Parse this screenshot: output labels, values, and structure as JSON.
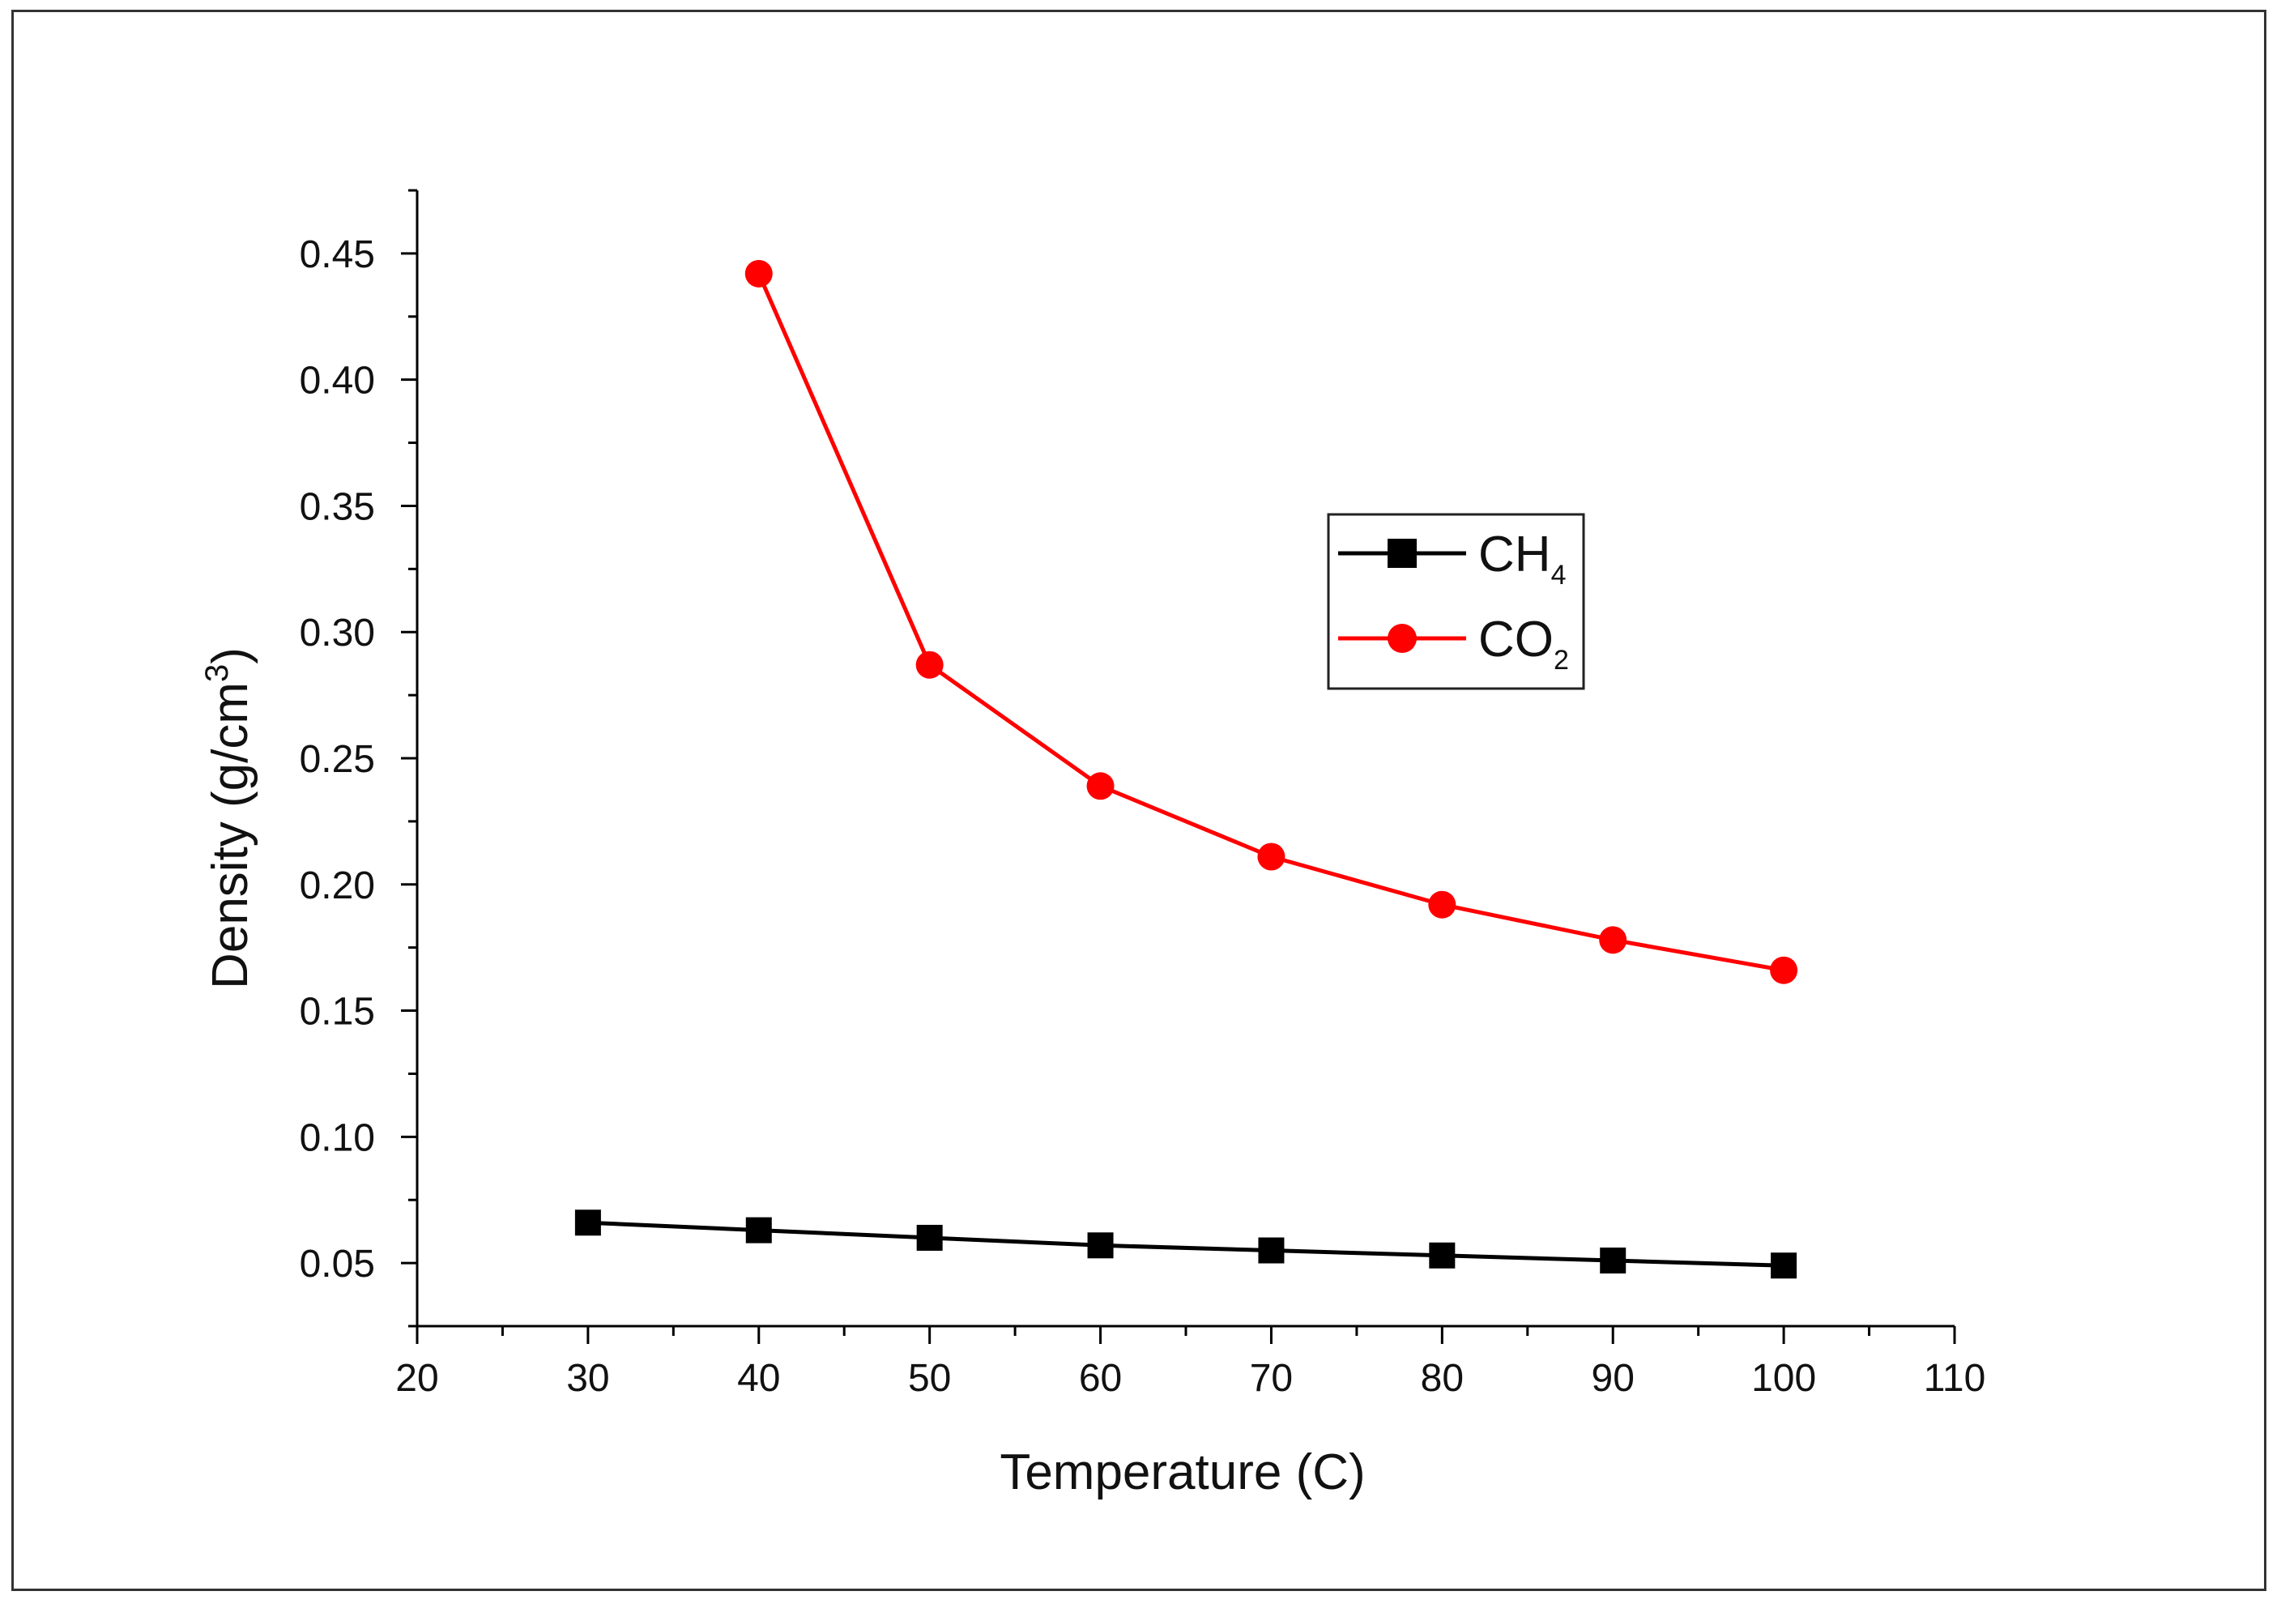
{
  "chart_data": {
    "type": "line",
    "title": "",
    "xlabel": "Temperature (C)",
    "ylabel": "Density (g/cm",
    "ylabel_sup": "3",
    "ylabel_end": ")",
    "xlim": [
      20,
      110
    ],
    "ylim": [
      0.025,
      0.475
    ],
    "xticks": [
      20,
      30,
      40,
      50,
      60,
      70,
      80,
      90,
      100,
      110
    ],
    "yticks": [
      0.05,
      0.1,
      0.15,
      0.2,
      0.25,
      0.3,
      0.35,
      0.4,
      0.45
    ],
    "xtick_labels": [
      "20",
      "30",
      "40",
      "50",
      "60",
      "70",
      "80",
      "90",
      "100",
      "110"
    ],
    "ytick_labels": [
      "0.05",
      "0.10",
      "0.15",
      "0.20",
      "0.25",
      "0.30",
      "0.35",
      "0.40",
      "0.45"
    ],
    "grid": false,
    "legend_position": "center-right",
    "series": [
      {
        "name": "CH",
        "name_sub": "4",
        "marker": "square",
        "color": "#000000",
        "x": [
          30,
          40,
          50,
          60,
          70,
          80,
          90,
          100
        ],
        "values": [
          0.066,
          0.063,
          0.06,
          0.057,
          0.055,
          0.053,
          0.051,
          0.049
        ]
      },
      {
        "name": "CO",
        "name_sub": "2",
        "marker": "circle",
        "color": "#ff0000",
        "x": [
          40,
          50,
          60,
          70,
          80,
          90,
          100
        ],
        "values": [
          0.442,
          0.287,
          0.239,
          0.211,
          0.192,
          0.178,
          0.166
        ]
      }
    ]
  }
}
